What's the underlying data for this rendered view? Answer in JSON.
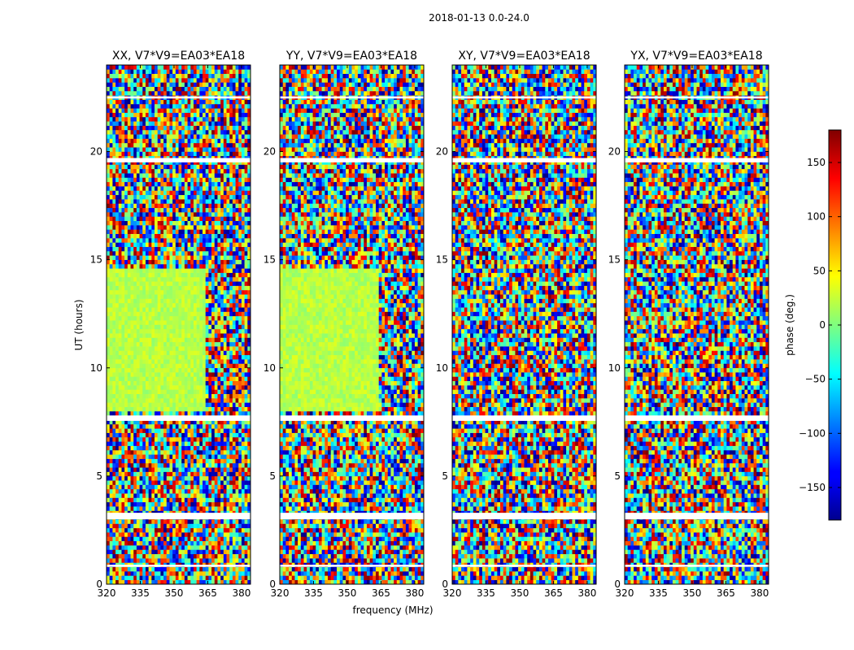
{
  "suptitle": "2018-01-13 0.0-24.0",
  "chart_data": {
    "type": "heatmap",
    "panels": [
      {
        "title": "XX, V7*V9=EA03*EA18",
        "polarization": "XX"
      },
      {
        "title": "YY, V7*V9=EA03*EA18",
        "polarization": "YY"
      },
      {
        "title": "XY, V7*V9=EA03*EA18",
        "polarization": "XY"
      },
      {
        "title": "YX, V7*V9=EA03*EA18",
        "polarization": "YX"
      }
    ],
    "x": {
      "label": "frequency (MHz)",
      "range": [
        320,
        384
      ],
      "ticks": [
        320,
        335,
        350,
        365,
        380
      ],
      "tick_labels": [
        "320",
        "335",
        "350",
        "365",
        "380"
      ]
    },
    "y": {
      "label": "UT (hours)",
      "range": [
        0,
        24
      ],
      "ticks": [
        0,
        5,
        10,
        15,
        20
      ],
      "tick_labels": [
        "0",
        "5",
        "10",
        "15",
        "20"
      ]
    },
    "colorbar": {
      "label": "phase (deg.)",
      "range": [
        -180,
        180
      ],
      "ticks": [
        -150,
        -100,
        -50,
        0,
        50,
        100,
        150
      ],
      "tick_labels": [
        "−150",
        "−100",
        "−50",
        "0",
        "50",
        "100",
        "150"
      ],
      "colormap": "jet"
    },
    "flagged_ut_bands": [
      [
        0.8,
        0.9
      ],
      [
        3.0,
        3.3
      ],
      [
        7.55,
        7.8
      ],
      [
        19.5,
        19.7
      ],
      [
        22.45,
        22.55
      ]
    ],
    "coherent_region": {
      "ut": [
        8.0,
        14.5
      ],
      "freq_max": 364,
      "phase_deg": 20,
      "panels": [
        "XX",
        "YY"
      ]
    }
  }
}
